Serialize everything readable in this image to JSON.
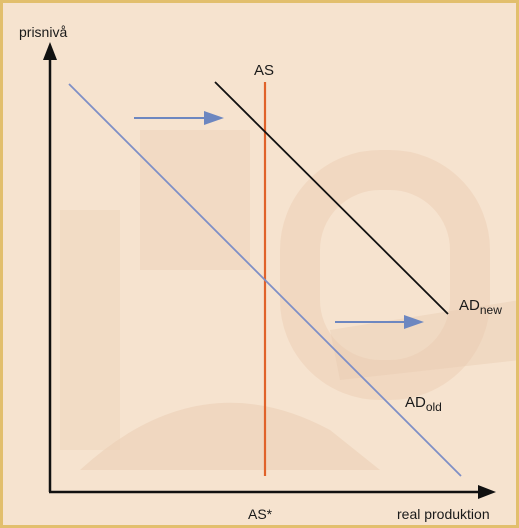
{
  "diagram": {
    "y_axis_label": "prisnivå",
    "x_axis_label": "real produktion",
    "as_label": "AS",
    "as_star_label": "AS*",
    "ad_new": {
      "base": "AD",
      "sub": "new"
    },
    "ad_old": {
      "base": "AD",
      "sub": "old"
    }
  },
  "colors": {
    "background": "#f6e3cf",
    "border": "#e2bf6d",
    "axis": "#111111",
    "as_line": "#e0622a",
    "ad_old_line": "#7f8fc6",
    "ad_new_line": "#111111",
    "shift_arrow": "#6d87c0"
  }
}
